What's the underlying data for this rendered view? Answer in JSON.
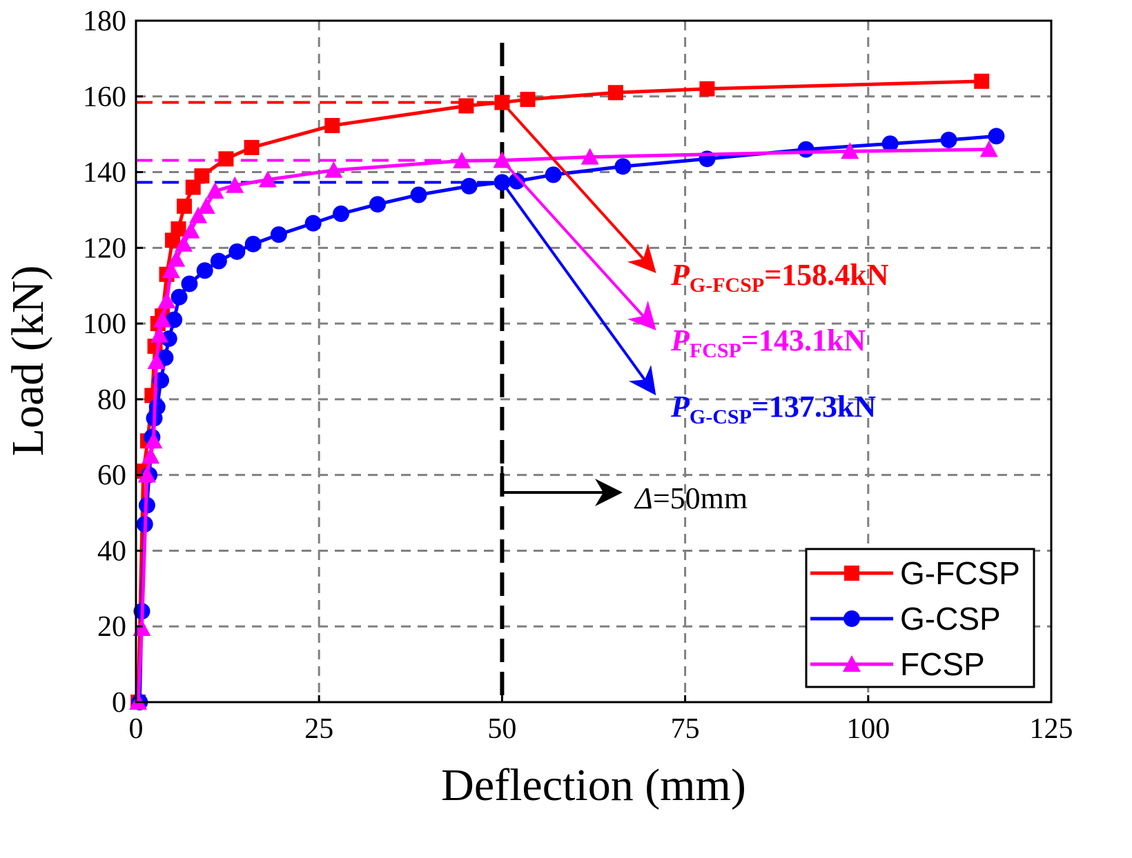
{
  "chart_data": {
    "type": "line",
    "xlabel": "Deflection (mm)",
    "ylabel": "Load (kN)",
    "xlim": [
      0,
      125
    ],
    "ylim": [
      0,
      180
    ],
    "xticks": [
      0,
      25,
      50,
      75,
      100,
      125
    ],
    "yticks": [
      0,
      20,
      40,
      60,
      80,
      100,
      120,
      140,
      160,
      180
    ],
    "grid": true,
    "legend_position": "bottom-right",
    "series": [
      {
        "name": "G-FCSP",
        "color": "#ff0000",
        "marker": "square",
        "x": [
          0.3,
          1.0,
          1.6,
          2.2,
          2.6,
          3.0,
          3.6,
          4.2,
          5.0,
          5.8,
          6.6,
          7.8,
          9.0,
          12.3,
          15.8,
          26.8,
          45.1,
          50.0,
          53.5,
          65.5,
          78.0,
          115.5
        ],
        "y": [
          0,
          61,
          69,
          81,
          94,
          100,
          102,
          113,
          122,
          125,
          131,
          136,
          139,
          143.5,
          146.5,
          152.3,
          157.5,
          158.4,
          159.2,
          161,
          162,
          164
        ]
      },
      {
        "name": "G-CSP",
        "color": "#0000ff",
        "marker": "circle",
        "x": [
          0.5,
          0.8,
          1.2,
          1.5,
          1.8,
          2.2,
          2.5,
          2.9,
          3.4,
          4.0,
          4.5,
          5.2,
          5.9,
          7.3,
          9.4,
          11.3,
          13.8,
          16.0,
          19.5,
          24.2,
          28.0,
          33.0,
          38.6,
          45.5,
          50.0,
          52.0,
          57.0,
          66.5,
          78.0,
          91.5,
          103.0,
          111.0,
          117.5
        ],
        "y": [
          0,
          24,
          47,
          52,
          60,
          70,
          75,
          78,
          85,
          91,
          96,
          101,
          107,
          110.5,
          114,
          116.5,
          119,
          121,
          123.5,
          126.5,
          129,
          131.5,
          134,
          136.3,
          137.3,
          137.6,
          139.3,
          141.5,
          143.5,
          146,
          147.5,
          148.5,
          149.5
        ]
      },
      {
        "name": "FCSP",
        "color": "#ff00ff",
        "marker": "triangle",
        "x": [
          0.3,
          0.8,
          1.5,
          2.0,
          2.4,
          2.8,
          3.2,
          3.6,
          4.2,
          4.8,
          5.5,
          6.5,
          7.5,
          8.5,
          9.6,
          10.8,
          13.5,
          18.0,
          27.0,
          44.5,
          50.0,
          62.0,
          97.5,
          116.5
        ],
        "y": [
          0,
          19.5,
          60,
          65,
          69,
          90,
          97,
          101,
          106,
          114,
          117,
          121,
          124.5,
          128.5,
          131,
          135,
          136.5,
          138,
          140.5,
          143,
          143.1,
          144,
          145.5,
          146
        ]
      }
    ],
    "reference_lines": {
      "vertical_x": 50,
      "horizontal": [
        {
          "y": 158.4,
          "color": "#ff0000"
        },
        {
          "y": 143.1,
          "color": "#ff00ff"
        },
        {
          "y": 137.3,
          "color": "#0000ff"
        }
      ]
    },
    "annotations": [
      {
        "symbol": "P",
        "subscript": "G-FCSP",
        "text": "=158.4kN",
        "color": "#ff0000",
        "value": 158.4
      },
      {
        "symbol": "P",
        "subscript": "FCSP",
        "text": "=143.1kN",
        "color": "#ff00ff",
        "value": 143.1
      },
      {
        "symbol": "P",
        "subscript": "G-CSP",
        "text": "=137.3kN",
        "color": "#0000ff",
        "value": 137.3
      }
    ],
    "delta_annotation": {
      "symbol": "Δ",
      "text": "=50mm"
    }
  }
}
